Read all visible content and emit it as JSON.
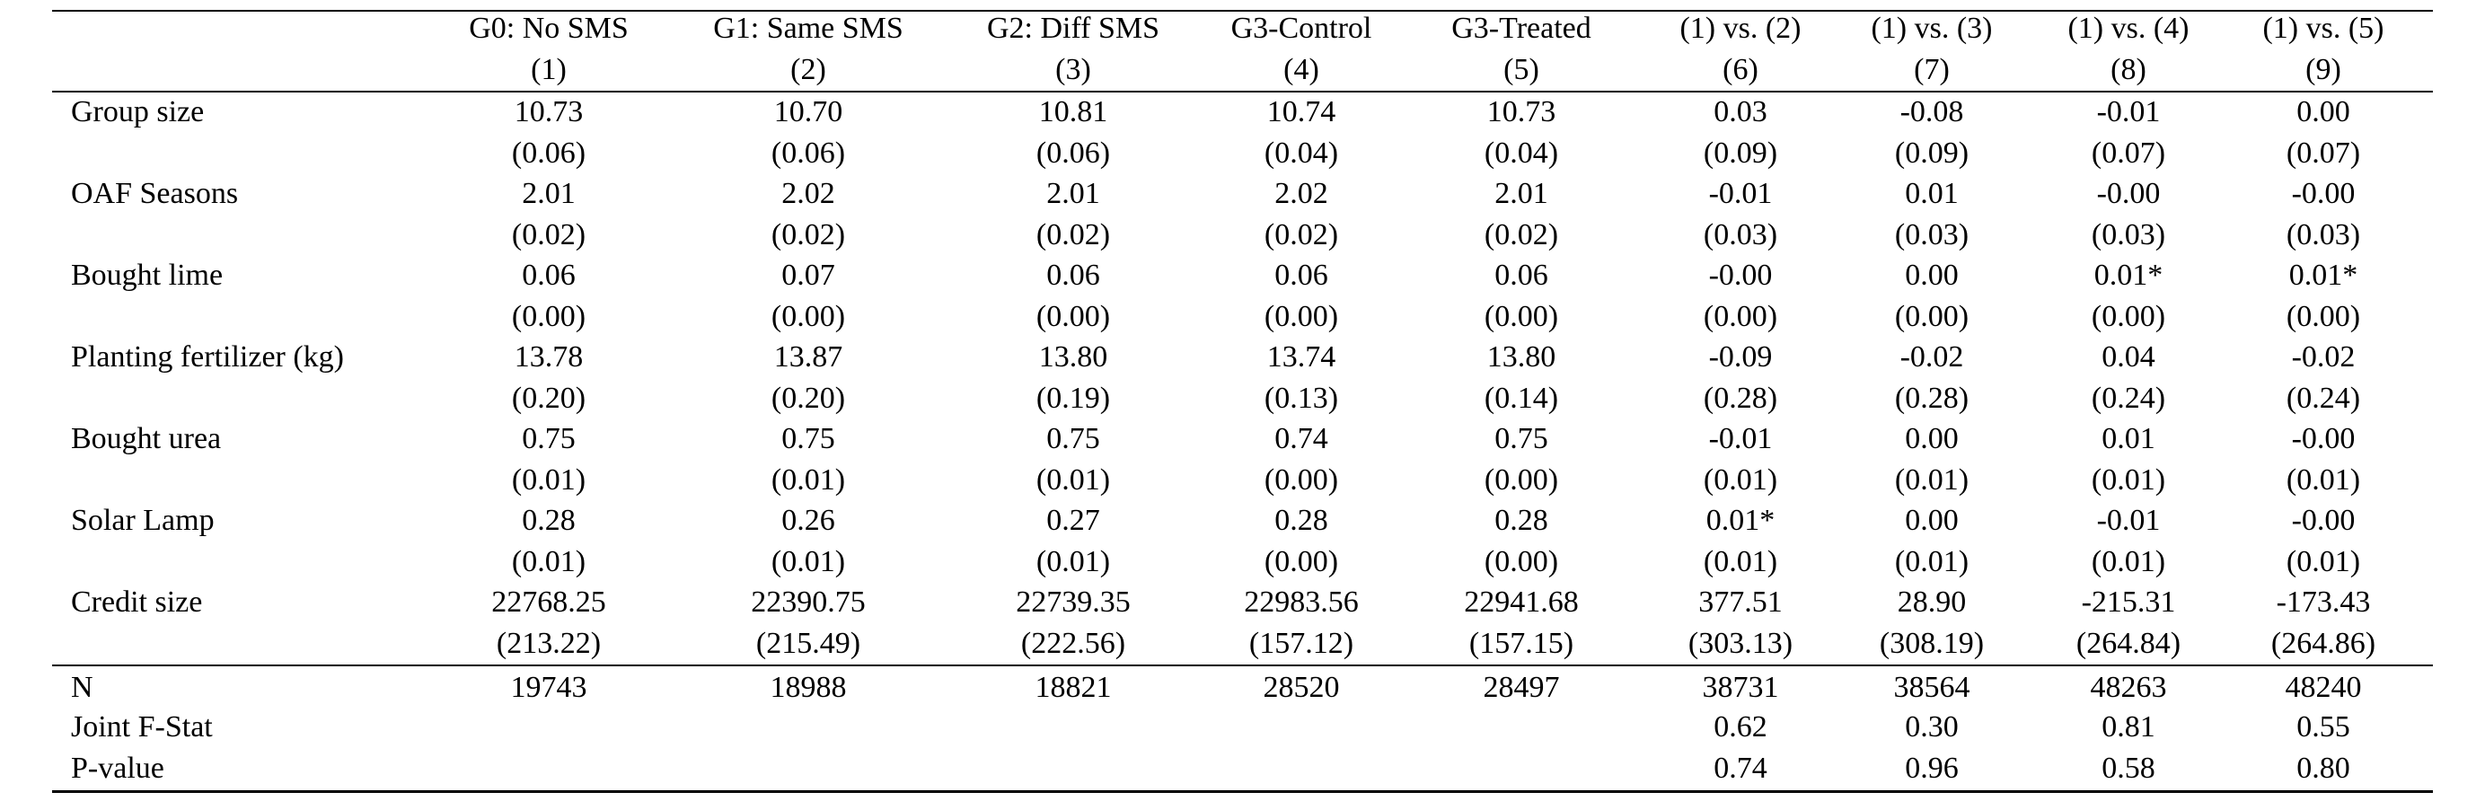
{
  "table": {
    "columns": [
      {
        "name": "G0: No SMS",
        "number": "(1)"
      },
      {
        "name": "G1: Same SMS",
        "number": "(2)"
      },
      {
        "name": "G2: Diff SMS",
        "number": "(3)"
      },
      {
        "name": "G3-Control",
        "number": "(4)"
      },
      {
        "name": "G3-Treated",
        "number": "(5)"
      },
      {
        "name": "(1) vs. (2)",
        "number": "(6)"
      },
      {
        "name": "(1) vs. (3)",
        "number": "(7)"
      },
      {
        "name": "(1) vs. (4)",
        "number": "(8)"
      },
      {
        "name": "(1) vs. (5)",
        "number": "(9)"
      }
    ],
    "rows": [
      {
        "label": "Group size",
        "estimates": [
          "10.73",
          "10.70",
          "10.81",
          "10.74",
          "10.73",
          "0.03",
          "-0.08",
          "-0.01",
          "0.00"
        ],
        "se": [
          "(0.06)",
          "(0.06)",
          "(0.06)",
          "(0.04)",
          "(0.04)",
          "(0.09)",
          "(0.09)",
          "(0.07)",
          "(0.07)"
        ]
      },
      {
        "label": "OAF Seasons",
        "estimates": [
          "2.01",
          "2.02",
          "2.01",
          "2.02",
          "2.01",
          "-0.01",
          "0.01",
          "-0.00",
          "-0.00"
        ],
        "se": [
          "(0.02)",
          "(0.02)",
          "(0.02)",
          "(0.02)",
          "(0.02)",
          "(0.03)",
          "(0.03)",
          "(0.03)",
          "(0.03)"
        ]
      },
      {
        "label": "Bought lime",
        "estimates": [
          "0.06",
          "0.07",
          "0.06",
          "0.06",
          "0.06",
          "-0.00",
          "0.00",
          "0.01*",
          "0.01*"
        ],
        "se": [
          "(0.00)",
          "(0.00)",
          "(0.00)",
          "(0.00)",
          "(0.00)",
          "(0.00)",
          "(0.00)",
          "(0.00)",
          "(0.00)"
        ]
      },
      {
        "label": "Planting fertilizer (kg)",
        "estimates": [
          "13.78",
          "13.87",
          "13.80",
          "13.74",
          "13.80",
          "-0.09",
          "-0.02",
          "0.04",
          "-0.02"
        ],
        "se": [
          "(0.20)",
          "(0.20)",
          "(0.19)",
          "(0.13)",
          "(0.14)",
          "(0.28)",
          "(0.28)",
          "(0.24)",
          "(0.24)"
        ]
      },
      {
        "label": "Bought urea",
        "estimates": [
          "0.75",
          "0.75",
          "0.75",
          "0.74",
          "0.75",
          "-0.01",
          "0.00",
          "0.01",
          "-0.00"
        ],
        "se": [
          "(0.01)",
          "(0.01)",
          "(0.01)",
          "(0.00)",
          "(0.00)",
          "(0.01)",
          "(0.01)",
          "(0.01)",
          "(0.01)"
        ]
      },
      {
        "label": "Solar Lamp",
        "estimates": [
          "0.28",
          "0.26",
          "0.27",
          "0.28",
          "0.28",
          "0.01*",
          "0.00",
          "-0.01",
          "-0.00"
        ],
        "se": [
          "(0.01)",
          "(0.01)",
          "(0.01)",
          "(0.00)",
          "(0.00)",
          "(0.01)",
          "(0.01)",
          "(0.01)",
          "(0.01)"
        ]
      },
      {
        "label": "Credit size",
        "estimates": [
          "22768.25",
          "22390.75",
          "22739.35",
          "22983.56",
          "22941.68",
          "377.51",
          "28.90",
          "-215.31",
          "-173.43"
        ],
        "se": [
          "(213.22)",
          "(215.49)",
          "(222.56)",
          "(157.12)",
          "(157.15)",
          "(303.13)",
          "(308.19)",
          "(264.84)",
          "(264.86)"
        ]
      }
    ],
    "n": {
      "label": "N",
      "values": [
        "19743",
        "18988",
        "18821",
        "28520",
        "28497",
        "38731",
        "38564",
        "48263",
        "48240"
      ]
    },
    "joint_f_stat": {
      "label": "Joint F-Stat",
      "values": [
        "0.62",
        "0.30",
        "0.81",
        "0.55"
      ]
    },
    "p_value": {
      "label": "P-value",
      "values": [
        "0.74",
        "0.96",
        "0.58",
        "0.80"
      ]
    }
  }
}
